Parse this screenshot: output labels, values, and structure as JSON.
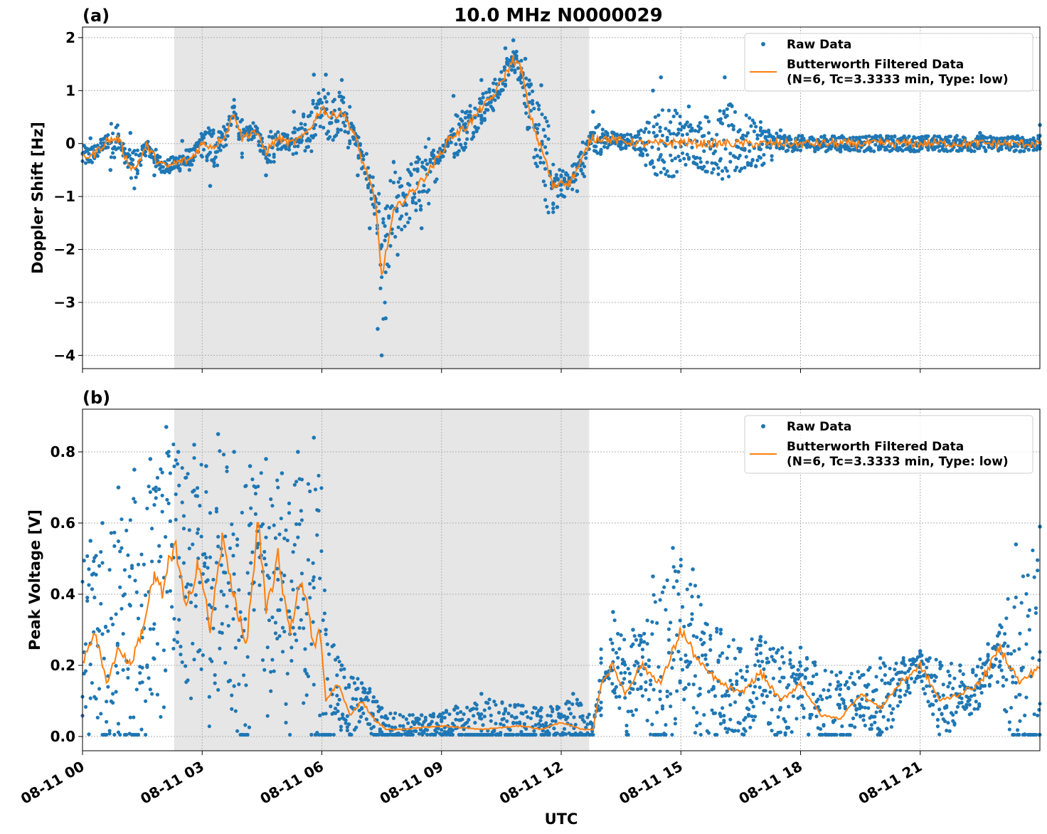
{
  "figure": {
    "title": "10.0 MHz N0000029",
    "xlabel": "UTC",
    "shaded_interval": [
      "08-11 02:18",
      "08-11 12:42"
    ],
    "colors": {
      "raw": "#1f77b4",
      "filtered": "#ff7f0e",
      "shade": "#e6e6e6",
      "grid": "#b0b0b0"
    }
  },
  "legend": {
    "raw_label": "Raw Data",
    "filtered_label_line1": "Butterworth Filtered Data",
    "filtered_label_line2": "(N=6, Tc=3.3333 min, Type: low)"
  },
  "chart_data": [
    {
      "type": "scatter",
      "panel_label": "(a)",
      "ylabel": "Doppler Shift [Hz]",
      "x_unit": "hours UTC on 08-11",
      "xlim": [
        0,
        24
      ],
      "ylim": [
        -4.25,
        2.2
      ],
      "xticks": [
        0,
        3,
        6,
        9,
        12,
        15,
        18,
        21
      ],
      "xtick_labels": [],
      "yticks": [
        -4,
        -3,
        -2,
        -1,
        0,
        1,
        2
      ],
      "ytick_labels": [
        "−4",
        "−3",
        "−2",
        "−1",
        "0",
        "1",
        "2"
      ],
      "legend_position": "top-right",
      "grid": true,
      "series": [
        {
          "name": "Butterworth Filtered Data",
          "x": [
            0,
            0.3,
            0.6,
            0.9,
            1.1,
            1.3,
            1.6,
            1.9,
            2.1,
            2.4,
            2.7,
            3.0,
            3.3,
            3.6,
            3.8,
            4.0,
            4.3,
            4.6,
            4.9,
            5.2,
            5.5,
            5.8,
            6.0,
            6.2,
            6.5,
            6.8,
            7.0,
            7.2,
            7.35,
            7.5,
            7.6,
            7.8,
            8.0,
            8.4,
            8.8,
            9.2,
            9.6,
            10.0,
            10.3,
            10.6,
            10.8,
            11.0,
            11.2,
            11.4,
            11.6,
            11.8,
            12.0,
            12.2,
            12.5,
            12.75,
            13.0,
            13.5,
            14.0,
            14.5,
            15.0,
            15.5,
            16.0,
            17.0,
            18.0,
            19.0,
            20.0,
            21.0,
            22.0,
            23.0,
            24.0
          ],
          "values": [
            -0.25,
            -0.2,
            0.05,
            0.1,
            -0.3,
            -0.5,
            -0.05,
            -0.35,
            -0.45,
            -0.35,
            -0.3,
            0.0,
            -0.05,
            0.2,
            0.6,
            0.1,
            0.25,
            -0.15,
            0.1,
            0.0,
            0.1,
            0.4,
            0.7,
            0.5,
            0.6,
            0.2,
            -0.3,
            -0.7,
            -1.2,
            -2.5,
            -2.1,
            -1.3,
            -1.1,
            -0.8,
            -0.4,
            0.1,
            0.3,
            0.65,
            0.9,
            1.3,
            1.6,
            1.4,
            0.6,
            0.1,
            -0.3,
            -0.85,
            -0.7,
            -0.75,
            -0.35,
            0.1,
            0.1,
            0.05,
            0.0,
            0.0,
            0.03,
            0.0,
            0.0,
            0.0,
            0.0,
            0.0,
            0.0,
            0.0,
            0.0,
            0.0,
            0.0
          ]
        },
        {
          "name": "Raw Data",
          "x": [
            0.2,
            0.7,
            1.2,
            1.8,
            2.5,
            3.2,
            3.8,
            4.6,
            5.3,
            5.8,
            6.1,
            6.5,
            6.9,
            7.2,
            7.4,
            7.5,
            7.6,
            7.9,
            8.5,
            9.3,
            10.0,
            10.6,
            10.8,
            11.1,
            11.5,
            11.9,
            12.4,
            12.8,
            13.5,
            14.3,
            14.5,
            15.2,
            16.1,
            17.5,
            19.0,
            21.0,
            22.5,
            23.5,
            24.0
          ],
          "values": [
            0.1,
            -0.5,
            0.2,
            -0.6,
            0.05,
            -0.8,
            0.7,
            -0.6,
            0.6,
            1.3,
            1.3,
            1.2,
            -0.6,
            -1.6,
            -3.5,
            -4.0,
            -3.3,
            -2.1,
            -1.6,
            0.9,
            1.2,
            1.8,
            1.95,
            1.6,
            1.1,
            -1.2,
            -0.9,
            0.6,
            -0.1,
            1.0,
            1.25,
            0.7,
            1.25,
            0.25,
            -0.15,
            0.1,
            0.2,
            -0.15,
            0.35
          ]
        }
      ]
    },
    {
      "type": "scatter",
      "panel_label": "(b)",
      "ylabel": "Peak Voltage [V]",
      "x_unit": "hours UTC on 08-11",
      "xlim": [
        0,
        24
      ],
      "ylim": [
        -0.04,
        0.92
      ],
      "xticks": [
        0,
        3,
        6,
        9,
        12,
        15,
        18,
        21
      ],
      "xtick_labels": [
        "08-11 00",
        "08-11 03",
        "08-11 06",
        "08-11 09",
        "08-11 12",
        "08-11 15",
        "08-11 18",
        "08-11 21"
      ],
      "yticks": [
        0.0,
        0.2,
        0.4,
        0.6,
        0.8
      ],
      "ytick_labels": [
        "0.0",
        "0.2",
        "0.4",
        "0.6",
        "0.8"
      ],
      "legend_position": "top-right",
      "grid": true,
      "series": [
        {
          "name": "Butterworth Filtered Data",
          "x": [
            0,
            0.3,
            0.6,
            0.9,
            1.2,
            1.5,
            1.8,
            2.0,
            2.3,
            2.6,
            2.9,
            3.2,
            3.5,
            3.8,
            4.1,
            4.4,
            4.6,
            4.9,
            5.2,
            5.5,
            5.8,
            5.95,
            6.1,
            6.4,
            6.7,
            7.0,
            7.3,
            7.6,
            8.0,
            9.0,
            10.0,
            11.0,
            11.5,
            12.0,
            12.5,
            12.8,
            13.0,
            13.3,
            13.6,
            14.0,
            14.5,
            15.0,
            15.5,
            16.0,
            16.5,
            17.0,
            17.5,
            18.0,
            18.5,
            19.0,
            19.5,
            20.0,
            20.5,
            21.0,
            21.5,
            22.0,
            22.5,
            23.0,
            23.5,
            24.0
          ],
          "values": [
            0.2,
            0.3,
            0.15,
            0.25,
            0.2,
            0.3,
            0.45,
            0.4,
            0.55,
            0.35,
            0.5,
            0.3,
            0.55,
            0.4,
            0.25,
            0.6,
            0.35,
            0.5,
            0.3,
            0.45,
            0.25,
            0.3,
            0.1,
            0.15,
            0.06,
            0.1,
            0.05,
            0.02,
            0.02,
            0.03,
            0.02,
            0.03,
            0.02,
            0.04,
            0.02,
            0.02,
            0.15,
            0.2,
            0.12,
            0.2,
            0.15,
            0.3,
            0.2,
            0.15,
            0.12,
            0.18,
            0.1,
            0.15,
            0.06,
            0.05,
            0.12,
            0.08,
            0.15,
            0.2,
            0.1,
            0.12,
            0.15,
            0.25,
            0.15,
            0.2
          ]
        },
        {
          "name": "Raw Data",
          "x": [
            0.2,
            0.5,
            0.9,
            1.3,
            1.7,
            2.1,
            2.4,
            2.8,
            3.1,
            3.4,
            3.8,
            4.2,
            4.6,
            5.0,
            5.4,
            5.8,
            6.1,
            6.5,
            7.0,
            7.5,
            8.5,
            10.0,
            11.5,
            12.3,
            12.8,
            13.3,
            13.8,
            14.3,
            14.8,
            15.3,
            16.0,
            17.0,
            18.0,
            19.0,
            20.0,
            21.0,
            22.0,
            22.7,
            23.4,
            24.0
          ],
          "values": [
            0.55,
            0.6,
            0.7,
            0.75,
            0.78,
            0.87,
            0.8,
            0.82,
            0.76,
            0.85,
            0.8,
            0.76,
            0.78,
            0.74,
            0.8,
            0.84,
            0.3,
            0.2,
            0.15,
            0.08,
            0.06,
            0.12,
            0.08,
            0.12,
            0.03,
            0.35,
            0.3,
            0.45,
            0.53,
            0.47,
            0.3,
            0.28,
            0.25,
            0.18,
            0.22,
            0.24,
            0.2,
            0.26,
            0.54,
            0.59
          ]
        }
      ]
    }
  ]
}
